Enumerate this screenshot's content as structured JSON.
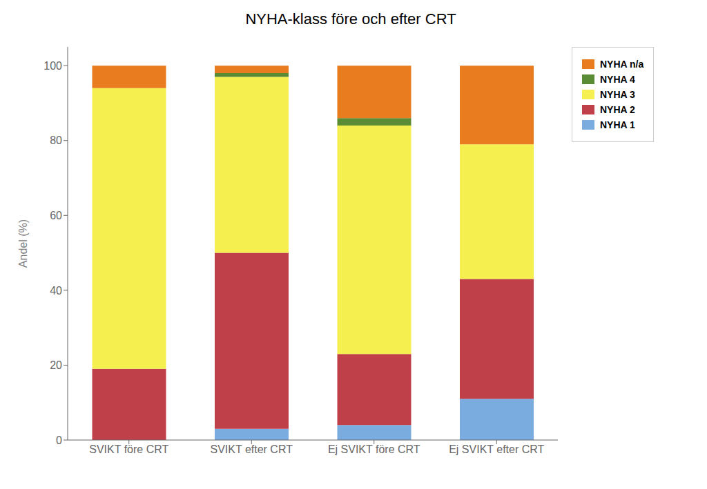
{
  "chart_data": {
    "type": "bar",
    "title": "NYHA-klass före och efter CRT",
    "ylabel": "Andel (%)",
    "categories": [
      "SVIKT före CRT",
      "SVIKT efter CRT",
      "Ej SVIKT före CRT",
      "Ej SVIKT efter CRT"
    ],
    "series": [
      {
        "name": "NYHA 1",
        "color": "#7aace0",
        "values": [
          0,
          3,
          4,
          11
        ]
      },
      {
        "name": "NYHA 2",
        "color": "#c0404a",
        "values": [
          19,
          47,
          19,
          32
        ]
      },
      {
        "name": "NYHA 3",
        "color": "#f5f050",
        "values": [
          75,
          47,
          61,
          36
        ]
      },
      {
        "name": "NYHA 4",
        "color": "#5a8c35",
        "values": [
          0,
          1,
          2,
          0
        ]
      },
      {
        "name": "NYHA n/a",
        "color": "#e87c1e",
        "values": [
          6,
          2,
          14,
          21
        ]
      }
    ],
    "stacked": true,
    "ylim": [
      0,
      105
    ],
    "yticks": [
      0,
      20,
      40,
      60,
      80,
      100
    ],
    "grid": false,
    "legend": "right"
  }
}
